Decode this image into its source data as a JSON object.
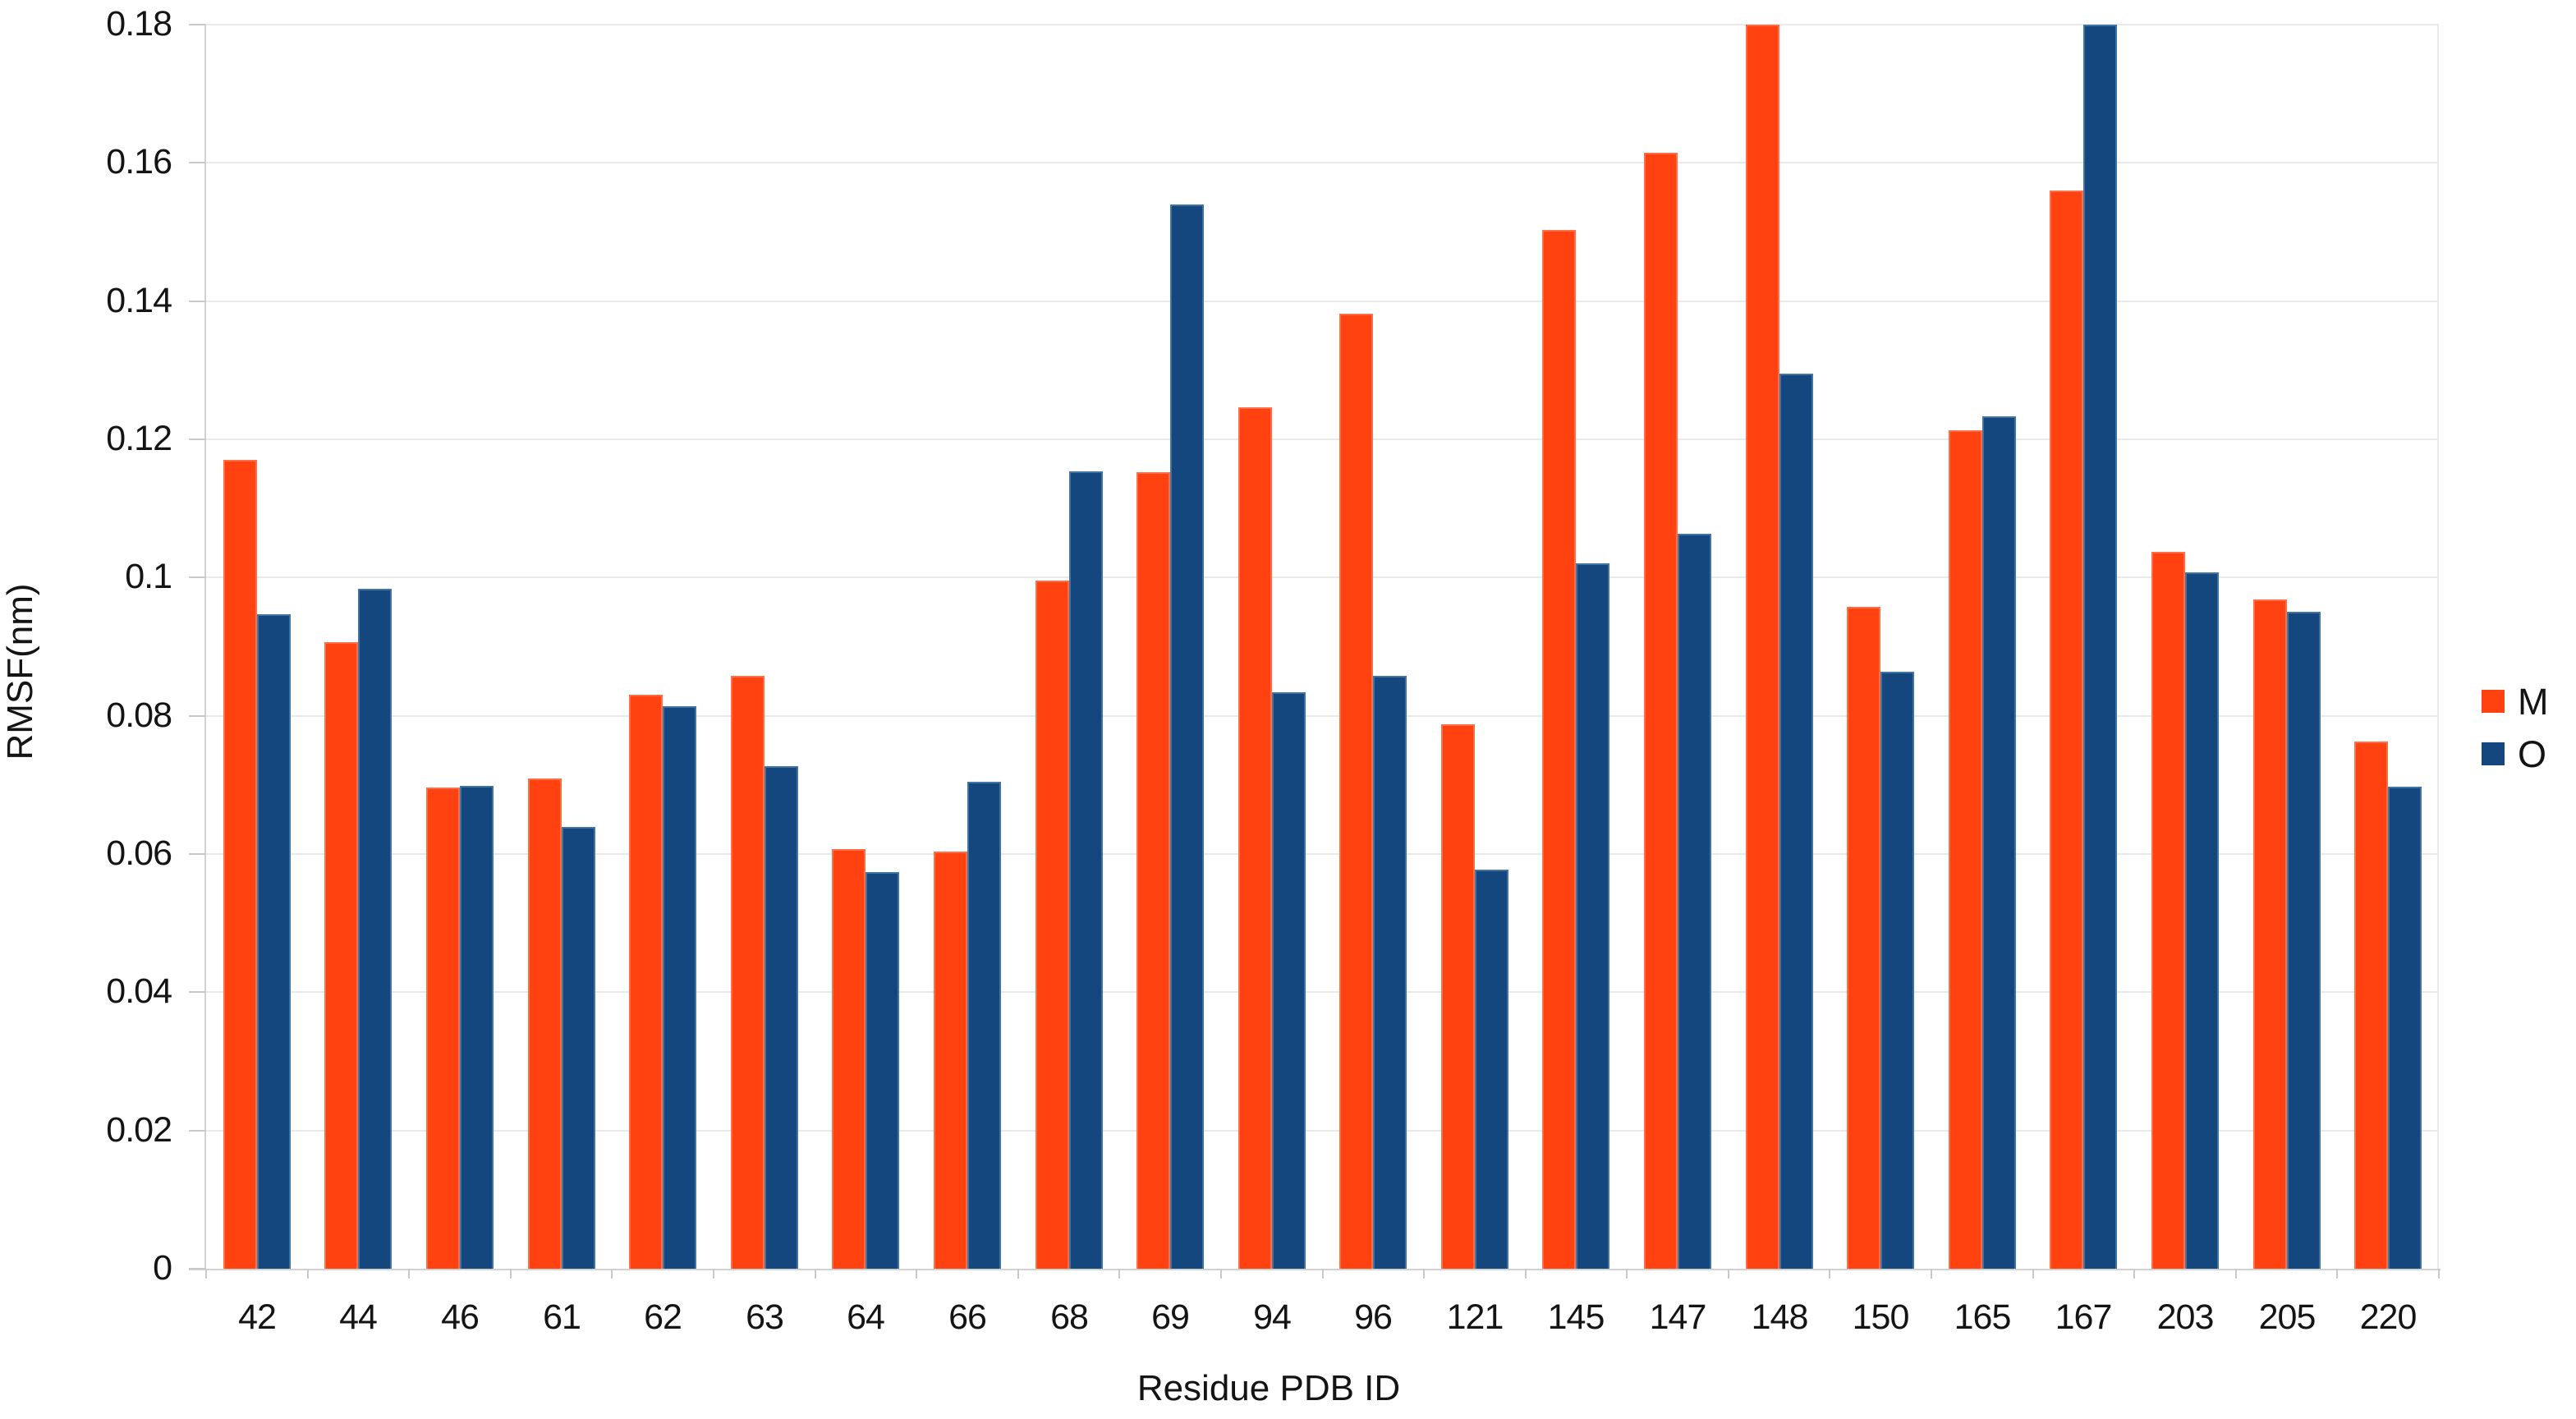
{
  "chart_data": {
    "type": "bar",
    "title": "",
    "xlabel": "Residue PDB ID",
    "ylabel": "RMSF(nm)",
    "categories": [
      "42",
      "44",
      "46",
      "61",
      "62",
      "63",
      "64",
      "66",
      "68",
      "69",
      "94",
      "96",
      "121",
      "145",
      "147",
      "148",
      "150",
      "165",
      "167",
      "203",
      "205",
      "220"
    ],
    "series": [
      {
        "name": "M",
        "color": "#ff4210",
        "values": [
          0.117,
          0.0907,
          0.0696,
          0.0709,
          0.083,
          0.0858,
          0.0607,
          0.0604,
          0.0996,
          0.1152,
          0.1246,
          0.1382,
          0.0788,
          0.1503,
          0.1615,
          0.18,
          0.0958,
          0.1213,
          0.156,
          0.1037,
          0.0968,
          0.0763
        ]
      },
      {
        "name": "O",
        "color": "#14477e",
        "values": [
          0.0947,
          0.0984,
          0.0699,
          0.0639,
          0.0814,
          0.0727,
          0.0574,
          0.0704,
          0.1154,
          0.154,
          0.0834,
          0.0858,
          0.0578,
          0.102,
          0.1063,
          0.1295,
          0.0864,
          0.1233,
          0.18,
          0.1007,
          0.095,
          0.0697
        ]
      }
    ],
    "ylim": [
      0,
      0.18
    ],
    "ytick_step": 0.02,
    "ytick_labels": [
      "0",
      "0.02",
      "0.04",
      "0.06",
      "0.08",
      "0.1",
      "0.12",
      "0.14",
      "0.16",
      "0.18"
    ],
    "grid": true,
    "legend_position": "right"
  }
}
